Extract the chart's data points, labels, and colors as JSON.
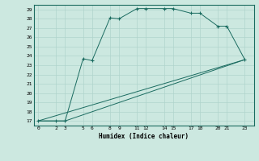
{
  "xlabel": "Humidex (Indice chaleur)",
  "bg_color": "#cce8e0",
  "grid_color": "#b0d4cc",
  "line_color": "#1a6b60",
  "xlim": [
    -0.5,
    24
  ],
  "ylim": [
    16.5,
    29.5
  ],
  "xticks": [
    0,
    2,
    3,
    5,
    6,
    8,
    9,
    11,
    12,
    14,
    15,
    17,
    18,
    20,
    21,
    23
  ],
  "yticks": [
    17,
    18,
    19,
    20,
    21,
    22,
    23,
    24,
    25,
    26,
    27,
    28,
    29
  ],
  "line1_x": [
    0,
    2,
    3,
    5,
    6,
    8,
    9,
    11,
    12,
    14,
    15,
    17,
    18,
    20,
    21,
    23
  ],
  "line1_y": [
    17,
    17,
    17,
    23.7,
    23.5,
    28.1,
    28.0,
    29.1,
    29.1,
    29.1,
    29.1,
    28.6,
    28.6,
    27.2,
    27.2,
    23.6
  ],
  "line2_x": [
    0,
    23
  ],
  "line2_y": [
    17,
    23.6
  ],
  "line3_x": [
    0,
    3,
    23
  ],
  "line3_y": [
    17,
    17,
    23.6
  ]
}
